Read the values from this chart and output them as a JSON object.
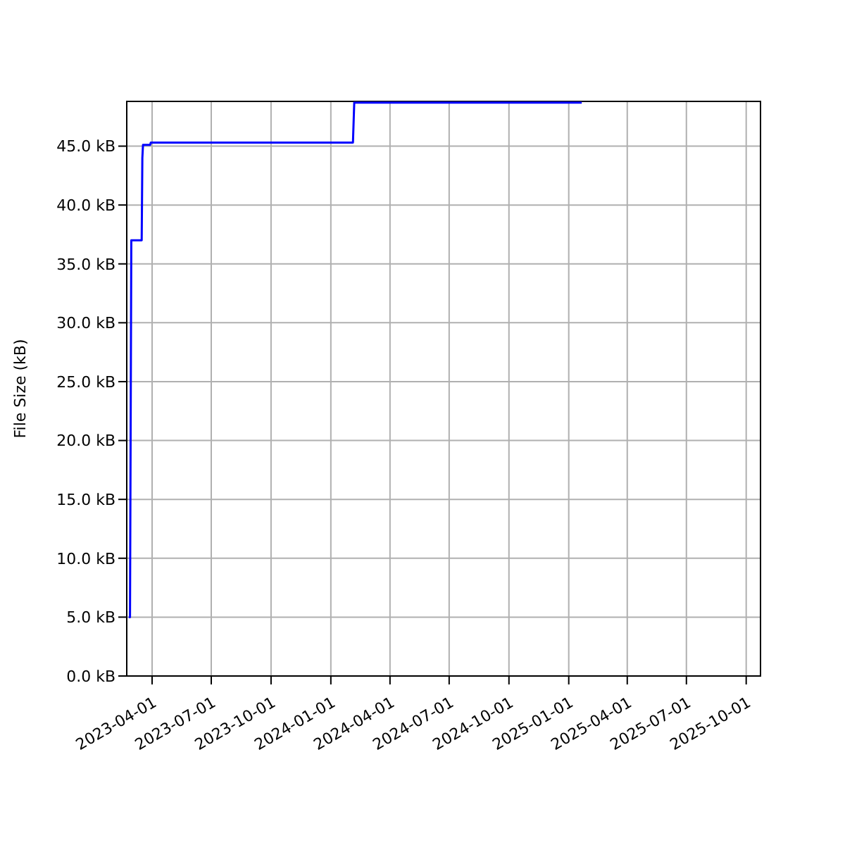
{
  "chart_data": {
    "type": "line",
    "ylabel": "File Size (kB)",
    "x": [
      "2023-02-24",
      "2023-02-26",
      "2023-02-28",
      "2023-03-16",
      "2023-03-17",
      "2023-03-18",
      "2023-03-29",
      "2023-03-30",
      "2024-02-04",
      "2024-02-06",
      "2025-01-21"
    ],
    "series": [
      {
        "color": "#0000ff",
        "values": [
          5.0,
          5.0,
          37.0,
          37.0,
          44.0,
          45.1,
          45.1,
          45.3,
          45.3,
          48.7,
          48.7
        ]
      }
    ],
    "xlim": [
      "2023-02-21",
      "2025-10-23"
    ],
    "xticks": [
      "2023-04-01",
      "2023-07-01",
      "2023-10-01",
      "2024-01-01",
      "2024-04-01",
      "2024-07-01",
      "2024-10-01",
      "2025-01-01",
      "2025-04-01",
      "2025-07-01",
      "2025-10-01"
    ],
    "ylim": [
      0,
      48.8
    ],
    "yticks": [
      {
        "value": 0,
        "label": "0.0 kB"
      },
      {
        "value": 5,
        "label": "5.0 kB"
      },
      {
        "value": 10,
        "label": "10.0 kB"
      },
      {
        "value": 15,
        "label": "15.0 kB"
      },
      {
        "value": 20,
        "label": "20.0 kB"
      },
      {
        "value": 25,
        "label": "25.0 kB"
      },
      {
        "value": 30,
        "label": "30.0 kB"
      },
      {
        "value": 35,
        "label": "35.0 kB"
      },
      {
        "value": 40,
        "label": "40.0 kB"
      },
      {
        "value": 45,
        "label": "45.0 kB"
      }
    ],
    "grid": true,
    "marker": "none",
    "line_style": "solid"
  }
}
